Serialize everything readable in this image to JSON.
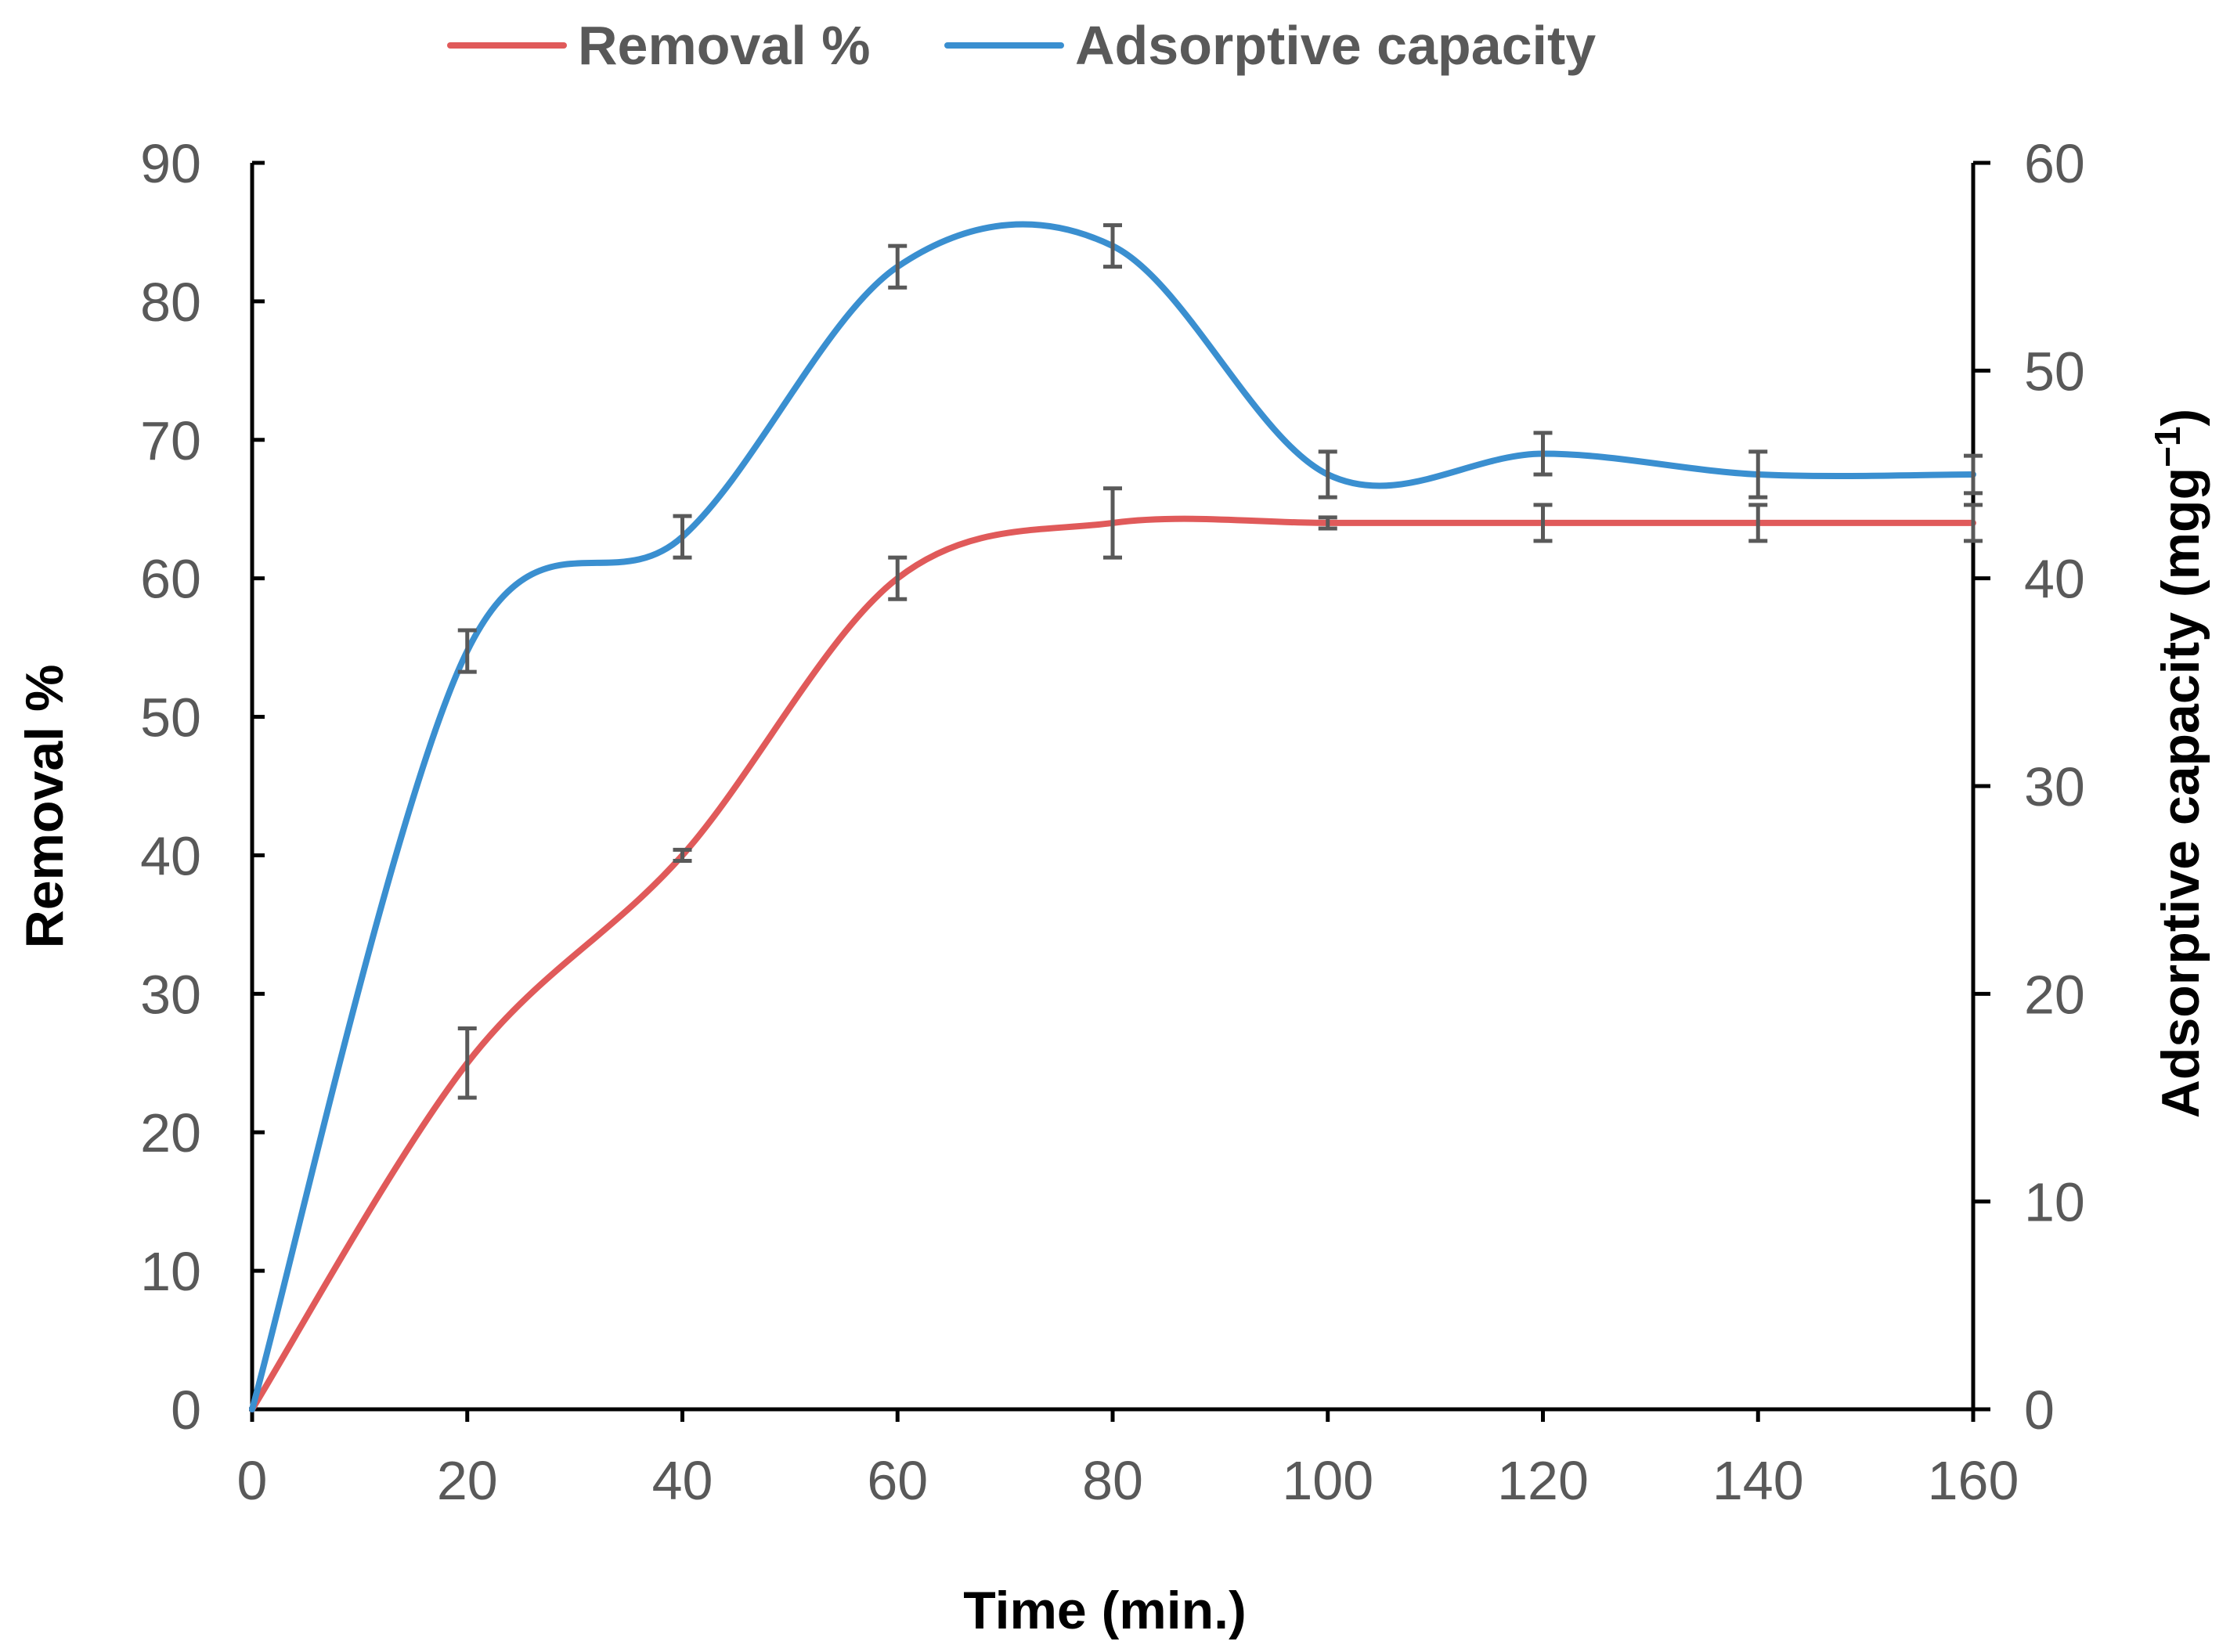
{
  "chart_data": {
    "type": "line",
    "title": "",
    "xlabel": "Time (min.)",
    "ylabel": "Removal %",
    "y2label_main": "Adsorptive capacity (mgg",
    "y2label_sup": "−1",
    "y2label_end": ")",
    "xlim": [
      0,
      160
    ],
    "ylim": [
      0,
      90
    ],
    "y2lim": [
      0,
      60
    ],
    "x_ticks": [
      0,
      20,
      40,
      60,
      80,
      100,
      120,
      140,
      160
    ],
    "y_ticks": [
      0,
      10,
      20,
      30,
      40,
      50,
      60,
      70,
      80,
      90
    ],
    "y2_ticks": [
      0,
      10,
      20,
      30,
      40,
      50,
      60
    ],
    "legend_position": "top-center",
    "series": [
      {
        "name": "Removal %",
        "axis": "left",
        "color": "#e05a5a",
        "x": [
          0,
          20,
          40,
          60,
          80,
          100,
          120,
          140,
          160
        ],
        "values": [
          0,
          25,
          40,
          60,
          64,
          64,
          64,
          64,
          64
        ],
        "errors": [
          0,
          2.5,
          0.4,
          1.5,
          2.5,
          0.4,
          1.3,
          1.3,
          1.3
        ]
      },
      {
        "name": "Adsorptive capacity",
        "axis": "right",
        "color": "#3a8fd0",
        "x": [
          0,
          20,
          40,
          60,
          80,
          100,
          120,
          140,
          160
        ],
        "values": [
          0,
          36.5,
          42,
          55,
          56,
          45,
          46,
          45,
          45
        ],
        "errors": [
          0,
          1,
          1,
          1,
          1,
          1.1,
          1,
          1.1,
          0.9
        ]
      }
    ]
  }
}
